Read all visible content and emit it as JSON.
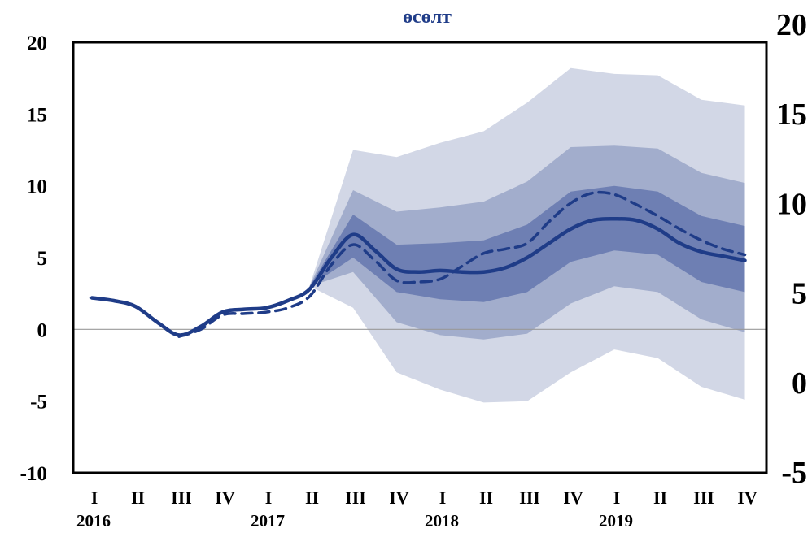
{
  "chart_data": {
    "type": "area",
    "title": "өсөлт",
    "y_left": {
      "ticks": [
        "20",
        "15",
        "10",
        "5",
        "0",
        "-5",
        "-10"
      ],
      "range": [
        -10,
        20
      ]
    },
    "y_right": {
      "ticks": [
        "20",
        "15",
        "10",
        "5",
        "0",
        "-5"
      ],
      "range": [
        -5,
        20
      ]
    },
    "quarter_labels": [
      "I",
      "II",
      "III",
      "IV",
      "I",
      "II",
      "III",
      "IV",
      "I",
      "II",
      "III",
      "IV",
      "I",
      "II",
      "III",
      "IV"
    ],
    "year_labels": [
      "2016",
      "2017",
      "2018",
      "2019"
    ],
    "x": [
      0,
      0.5,
      1,
      1.5,
      2,
      2.5,
      3,
      3.5,
      4,
      4.5,
      5,
      5.5,
      6,
      6.5,
      7,
      7.5,
      8,
      8.5,
      9,
      9.5,
      10,
      10.5,
      11,
      11.5,
      12,
      12.5,
      13,
      13.5,
      14,
      14.5,
      15
    ],
    "series": [
      {
        "values": [
          2.2,
          2.0,
          1.6,
          0.5,
          -0.4,
          0.2,
          1.2,
          1.4,
          1.5,
          2.0,
          2.8,
          5.0,
          6.6,
          5.5,
          4.2,
          4.0,
          4.1,
          4.0,
          4.0,
          4.3,
          5.0,
          6.0,
          7.0,
          7.6,
          7.7,
          7.6,
          7.0,
          6.0,
          5.4,
          5.1,
          4.8
        ],
        "style": "solid"
      },
      {
        "values": [
          null,
          null,
          null,
          null,
          -0.5,
          0.0,
          1.0,
          1.1,
          1.2,
          1.5,
          2.3,
          4.5,
          5.9,
          4.8,
          3.4,
          3.3,
          3.5,
          4.4,
          5.3,
          5.6,
          6.0,
          7.5,
          8.8,
          9.5,
          9.4,
          8.7,
          7.9,
          7.0,
          6.2,
          5.6,
          5.2
        ],
        "style": "dashed"
      }
    ],
    "bands": {
      "outer": {
        "upper": [
          3.0,
          12.5,
          12.0,
          13.0,
          13.8,
          15.8,
          18.2,
          17.8,
          17.7,
          16.0,
          15.6
        ],
        "lower": [
          3.0,
          1.5,
          -3.0,
          -4.2,
          -5.1,
          -5.0,
          -3.0,
          -1.4,
          -2.0,
          -4.0,
          -4.9
        ]
      },
      "mid": {
        "upper": [
          3.0,
          9.7,
          8.2,
          8.5,
          8.9,
          10.3,
          12.7,
          12.8,
          12.6,
          10.9,
          10.2
        ],
        "lower": [
          3.0,
          4.0,
          0.5,
          -0.4,
          -0.7,
          -0.3,
          1.8,
          3.0,
          2.6,
          0.7,
          -0.2
        ]
      },
      "inner": {
        "upper": [
          3.0,
          8.0,
          5.9,
          6.0,
          6.2,
          7.3,
          9.6,
          10.0,
          9.6,
          7.9,
          7.2
        ],
        "lower": [
          3.0,
          5.0,
          2.6,
          2.1,
          1.9,
          2.6,
          4.7,
          5.5,
          5.2,
          3.3,
          2.6
        ]
      }
    },
    "zero_line": true,
    "grid": false,
    "colors": {
      "line": "#1f3c88",
      "outer_band": "#d2d7e6",
      "mid_band": "#a2adcc",
      "inner_band": "#6e7fb3",
      "title": "#1f3c88",
      "zero_line": "#999999"
    }
  }
}
